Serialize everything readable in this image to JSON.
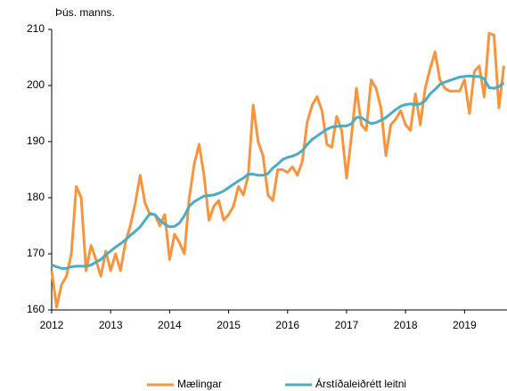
{
  "chart_data": {
    "type": "line",
    "y_axis_label": "Þús. manns.",
    "x": [
      2012.0,
      2012.083,
      2012.167,
      2012.25,
      2012.333,
      2012.417,
      2012.5,
      2012.583,
      2012.667,
      2012.75,
      2012.833,
      2012.917,
      2013.0,
      2013.083,
      2013.167,
      2013.25,
      2013.333,
      2013.417,
      2013.5,
      2013.583,
      2013.667,
      2013.75,
      2013.833,
      2013.917,
      2014.0,
      2014.083,
      2014.167,
      2014.25,
      2014.333,
      2014.417,
      2014.5,
      2014.583,
      2014.667,
      2014.75,
      2014.833,
      2014.917,
      2015.0,
      2015.083,
      2015.167,
      2015.25,
      2015.333,
      2015.417,
      2015.5,
      2015.583,
      2015.667,
      2015.75,
      2015.833,
      2015.917,
      2016.0,
      2016.083,
      2016.167,
      2016.25,
      2016.333,
      2016.417,
      2016.5,
      2016.583,
      2016.667,
      2016.75,
      2016.833,
      2016.917,
      2017.0,
      2017.083,
      2017.167,
      2017.25,
      2017.333,
      2017.417,
      2017.5,
      2017.583,
      2017.667,
      2017.75,
      2017.833,
      2017.917,
      2018.0,
      2018.083,
      2018.167,
      2018.25,
      2018.333,
      2018.417,
      2018.5,
      2018.583,
      2018.667,
      2018.75,
      2018.833,
      2018.917,
      2019.0,
      2019.083,
      2019.167,
      2019.25,
      2019.333,
      2019.417,
      2019.5,
      2019.583,
      2019.667
    ],
    "series": [
      {
        "name": "Mælingar",
        "color": "#f7943c",
        "values": [
          167,
          160.5,
          164.5,
          166,
          170,
          182,
          180,
          167,
          171.5,
          169,
          166,
          170.5,
          167,
          170,
          167,
          172,
          175,
          179,
          184,
          179,
          177,
          177,
          175,
          177,
          169,
          173.5,
          172,
          170,
          180,
          186,
          189.5,
          184,
          176,
          178.5,
          179.5,
          176,
          177,
          178.5,
          182,
          180.5,
          184,
          196.5,
          190,
          187.5,
          180.5,
          179.5,
          185,
          185,
          184.5,
          185.5,
          184,
          186.5,
          193.5,
          196.5,
          198,
          195.5,
          189.5,
          189,
          194.5,
          192,
          183.5,
          191,
          199.5,
          193,
          192,
          201,
          199.5,
          196,
          187.5,
          193,
          194,
          195.5,
          193,
          192,
          198.5,
          193,
          199.5,
          203,
          206,
          201,
          199.5,
          199,
          199,
          199,
          201,
          195,
          202.5,
          203.5,
          198,
          209.3,
          209,
          196,
          203.5
        ]
      },
      {
        "name": "Árstíðaleiðrétt leitni",
        "color": "#4bacc6",
        "values": [
          168,
          167.7,
          167.4,
          167.4,
          167.7,
          167.8,
          167.8,
          167.8,
          168,
          168.5,
          169,
          169.8,
          170.5,
          171.2,
          171.8,
          172.5,
          173.3,
          174,
          174.8,
          176,
          177.2,
          177,
          176,
          175.3,
          174.8,
          174.9,
          175.5,
          176.8,
          178.5,
          179.3,
          179.8,
          180.3,
          180.4,
          180.5,
          180.8,
          181.2,
          181.8,
          182.4,
          183,
          183.5,
          184.2,
          184.2,
          184,
          184,
          184.3,
          185.3,
          186,
          186.8,
          187.2,
          187.4,
          187.8,
          188.4,
          189.5,
          190.4,
          191,
          191.6,
          192.2,
          192.6,
          192.7,
          192.8,
          192.8,
          193.2,
          194.3,
          194.3,
          193.7,
          193.2,
          193.4,
          193.8,
          194.3,
          195,
          195.7,
          196.3,
          196.6,
          196.7,
          196.6,
          196.7,
          197.3,
          198.5,
          199.3,
          200.2,
          200.6,
          200.9,
          201.2,
          201.5,
          201.6,
          201.7,
          201.6,
          201.6,
          201.2,
          199.6,
          199.5,
          199.8,
          200.5
        ]
      }
    ],
    "xlim": [
      2012,
      2019.72
    ],
    "xticks": [
      2012,
      2013,
      2014,
      2015,
      2016,
      2017,
      2018,
      2019
    ],
    "ylim": [
      160,
      210
    ],
    "yticks": [
      160,
      170,
      180,
      190,
      200,
      210
    ],
    "legend": "bottom"
  }
}
